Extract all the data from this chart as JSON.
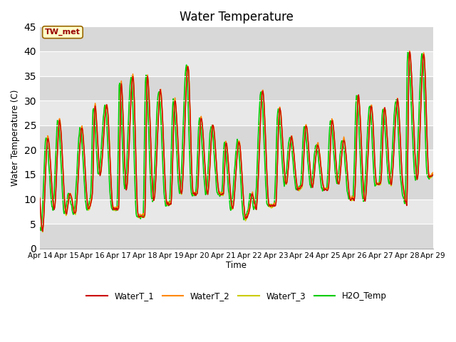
{
  "title": "Water Temperature",
  "xlabel": "Time",
  "ylabel": "Water Temperature (C)",
  "ylim": [
    0,
    45
  ],
  "yticks": [
    0,
    5,
    10,
    15,
    20,
    25,
    30,
    35,
    40,
    45
  ],
  "date_labels": [
    "Apr 14",
    "Apr 15",
    "Apr 16",
    "Apr 17",
    "Apr 18",
    "Apr 19",
    "Apr 20",
    "Apr 21",
    "Apr 22",
    "Apr 23",
    "Apr 24",
    "Apr 25",
    "Apr 26",
    "Apr 27",
    "Apr 28",
    "Apr 29"
  ],
  "series_colors": [
    "#cc0000",
    "#ff8800",
    "#cccc00",
    "#00cc00"
  ],
  "series_names": [
    "WaterT_1",
    "WaterT_2",
    "WaterT_3",
    "H2O_Temp"
  ],
  "series_linewidths": [
    1.0,
    1.0,
    1.0,
    1.2
  ],
  "annotation_text": "TW_met",
  "annotation_color": "#990000",
  "annotation_box_facecolor": "#ffffcc",
  "annotation_box_edgecolor": "#996600",
  "plot_bg_color": "#e8e8e8",
  "grid_color": "#ffffff",
  "title_fontsize": 12,
  "n_points": 720,
  "peaks_per_day": 2,
  "total_days": 15
}
